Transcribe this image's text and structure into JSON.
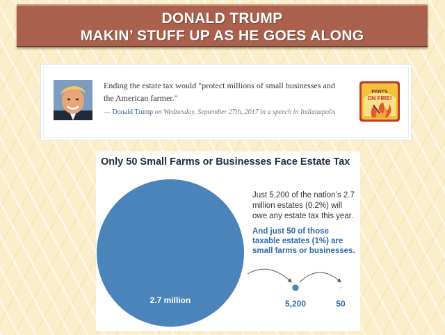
{
  "banner": {
    "line1": "DONALD TRUMP",
    "line2": "MAKIN’ STUFF UP AS HE GOES ALONG"
  },
  "quote": {
    "text": "Ending the estate tax would \"protect millions of small businesses and the American farmer.\"",
    "dash": "— ",
    "speaker": "Donald Trump",
    "context": " on Wednesday, September 27th, 2017 in a speech in Indianapolis",
    "rating_badge": {
      "line1": "PANTS",
      "line2": "ON FIRE!"
    }
  },
  "colors": {
    "banner": "#a9614d",
    "circle_blue": "#4a84ba",
    "highlight_blue": "#2f6aa6"
  },
  "chart_data": {
    "type": "proportional-circles",
    "title": "Only 50 Small Farms or Businesses Face Estate Tax",
    "description": "Just 5,200 of the nation’s 2.7 million estates (0.2%) will owe any estate tax this year.",
    "highlight": "And just 50 of those taxable estates (1%) are small farms or businesses.",
    "items": [
      {
        "label": "2.7 million",
        "value": 2700000
      },
      {
        "label": "5,200",
        "value": 5200
      },
      {
        "label": "50",
        "value": 50
      }
    ]
  }
}
